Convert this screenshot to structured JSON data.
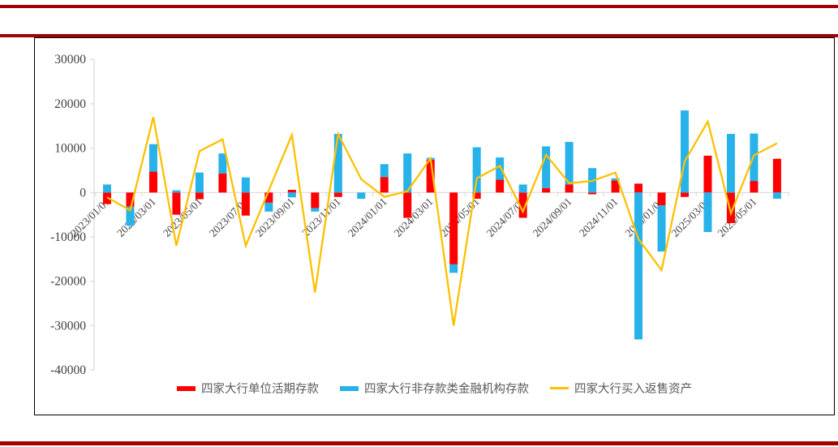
{
  "accent": {
    "rule_color": "#A40000",
    "frame_border_color": "#000000"
  },
  "axis": {
    "label_color": "#404040",
    "line_color": "#D9D9D9",
    "y_ticks": [
      30000,
      20000,
      10000,
      0,
      -10000,
      -20000,
      -30000,
      -40000
    ]
  },
  "chart_data": {
    "type": "combo",
    "stacked_bars": true,
    "legend_position": "bottom",
    "grid": "off",
    "ylim": [
      -40000,
      30000
    ],
    "ytick_step": 10000,
    "x_tick_interval": 2,
    "categories": [
      "2023/01/01",
      "2023/02/01",
      "2023/03/01",
      "2023/04/01",
      "2023/05/01",
      "2023/06/01",
      "2023/07/01",
      "2023/08/01",
      "2023/09/01",
      "2023/10/01",
      "2023/11/01",
      "2023/12/01",
      "2024/01/01",
      "2024/02/01",
      "2024/03/01",
      "2024/04/01",
      "2024/05/01",
      "2024/06/01",
      "2024/07/01",
      "2024/08/01",
      "2024/09/01",
      "2024/10/01",
      "2024/11/01",
      "2024/12/01",
      "2025/01/01",
      "2025/02/01",
      "2025/03/01",
      "2025/04/01",
      "2025/05/01",
      "2025/06/01"
    ],
    "series": [
      {
        "name": "四家大行单位活期存款",
        "type": "bar",
        "color": "#FF0000",
        "values": [
          -2600,
          -3200,
          4700,
          -5000,
          -1500,
          4300,
          -5200,
          -2300,
          600,
          -3500,
          -1000,
          0,
          3500,
          -5700,
          7400,
          -16200,
          -1400,
          2900,
          -5700,
          1000,
          1800,
          -400,
          2700,
          2000,
          -2900,
          -1000,
          8300,
          -6900,
          2600,
          7600
        ]
      },
      {
        "name": "四家大行非存款类金融机构存款",
        "type": "bar",
        "color": "#27B2EA",
        "values": [
          1800,
          -4300,
          6200,
          500,
          4500,
          4500,
          3400,
          -2000,
          -1100,
          -800,
          13200,
          -1400,
          2900,
          8800,
          400,
          -1900,
          10200,
          5000,
          1800,
          9400,
          9600,
          5500,
          500,
          -33100,
          -10400,
          18500,
          -8900,
          13200,
          10700,
          -1400
        ]
      },
      {
        "name": "四家大行买入返售资产",
        "type": "line",
        "color": "#FFC000",
        "values": [
          -1100,
          -4000,
          17000,
          -12000,
          9300,
          12000,
          -12000,
          500,
          13000,
          -22500,
          13200,
          3000,
          -1000,
          300,
          7700,
          -30000,
          3200,
          6000,
          -4300,
          8500,
          2100,
          2600,
          4500,
          -10500,
          -17500,
          7000,
          16000,
          -4700,
          8400,
          11100
        ]
      }
    ]
  }
}
